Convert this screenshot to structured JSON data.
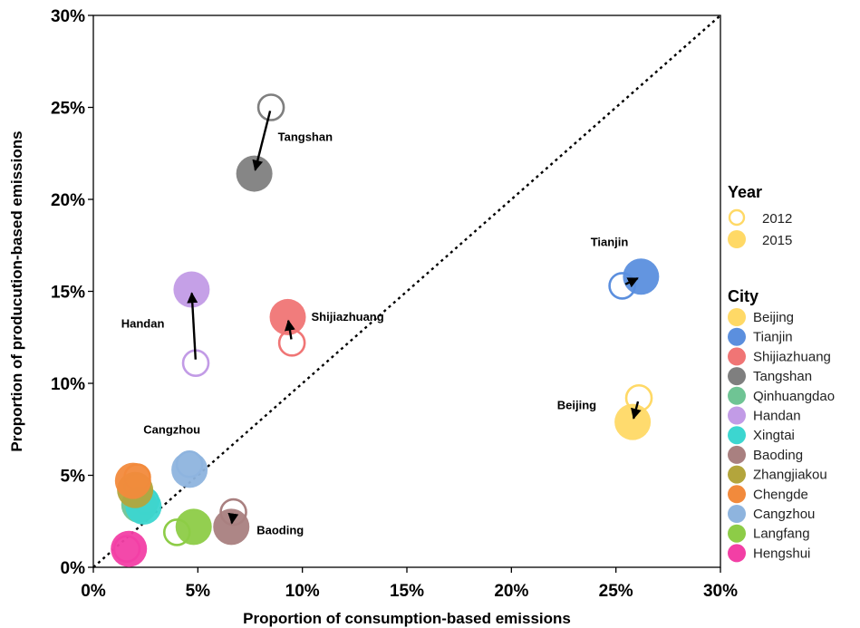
{
  "chart_data": {
    "type": "scatter",
    "xlabel": "Proportion of consumption-based emissions",
    "ylabel": "Proportion of producution-based emissions",
    "xlim": [
      0,
      30
    ],
    "ylim": [
      0,
      30
    ],
    "x_ticks": [
      "0%",
      "5%",
      "10%",
      "15%",
      "20%",
      "25%",
      "30%"
    ],
    "y_ticks": [
      "0%",
      "5%",
      "10%",
      "15%",
      "20%",
      "25%",
      "30%"
    ],
    "unit": "%",
    "reference_line": "y = x (dotted)",
    "legend_position": "right",
    "year_legend": {
      "title": "Year",
      "entries": [
        {
          "label": "2012",
          "style": "hollow"
        },
        {
          "label": "2015",
          "style": "filled"
        }
      ]
    },
    "city_legend_title": "City",
    "cities": [
      {
        "name": "Beijing",
        "color": "#FFD966",
        "label": "Beijing",
        "x2012": 26.1,
        "y2012": 9.2,
        "x2015": 25.8,
        "y2015": 7.9
      },
      {
        "name": "Tianjin",
        "color": "#5B8FDE",
        "label": "Tianjin",
        "x2012": 25.3,
        "y2012": 15.3,
        "x2015": 26.2,
        "y2015": 15.8
      },
      {
        "name": "Shijiazhuang",
        "color": "#F07575",
        "label": "Shijiazhuang",
        "x2012": 9.5,
        "y2012": 12.2,
        "x2015": 9.3,
        "y2015": 13.6
      },
      {
        "name": "Tangshan",
        "color": "#7F7F7F",
        "label": "Tangshan",
        "x2012": 8.5,
        "y2012": 25.0,
        "x2015": 7.7,
        "y2015": 21.4
      },
      {
        "name": "Qinhuangdao",
        "color": "#6FC494",
        "label": "",
        "x2012": 2.3,
        "y2012": 3.6,
        "x2015": 2.2,
        "y2015": 3.4
      },
      {
        "name": "Handan",
        "color": "#C29BE6",
        "label": "Handan",
        "x2012": 4.9,
        "y2012": 11.1,
        "x2015": 4.7,
        "y2015": 15.1
      },
      {
        "name": "Xingtai",
        "color": "#3CD6D0",
        "label": "",
        "x2012": 2.5,
        "y2012": 3.6,
        "x2015": 2.4,
        "y2015": 3.3
      },
      {
        "name": "Baoding",
        "color": "#A98080",
        "label": "Baoding",
        "x2012": 6.7,
        "y2012": 3.0,
        "x2015": 6.6,
        "y2015": 2.2
      },
      {
        "name": "Zhangjiakou",
        "color": "#B3A53C",
        "label": "",
        "x2012": 2.1,
        "y2012": 4.4,
        "x2015": 2.0,
        "y2015": 4.2
      },
      {
        "name": "Chengde",
        "color": "#F28A3C",
        "label": "",
        "x2012": 2.1,
        "y2012": 4.9,
        "x2015": 1.9,
        "y2015": 4.7
      },
      {
        "name": "Cangzhou",
        "color": "#8EB4DE",
        "label": "Cangzhou",
        "x2012": 4.6,
        "y2012": 5.6,
        "x2015": 4.6,
        "y2015": 5.3
      },
      {
        "name": "Langfang",
        "color": "#8DCC47",
        "label": "",
        "x2012": 4.0,
        "y2012": 1.9,
        "x2015": 4.8,
        "y2015": 2.2
      },
      {
        "name": "Hengshui",
        "color": "#F23FA5",
        "label": "",
        "x2012": 1.6,
        "y2012": 1.0,
        "x2015": 1.7,
        "y2015": 1.0
      }
    ]
  }
}
